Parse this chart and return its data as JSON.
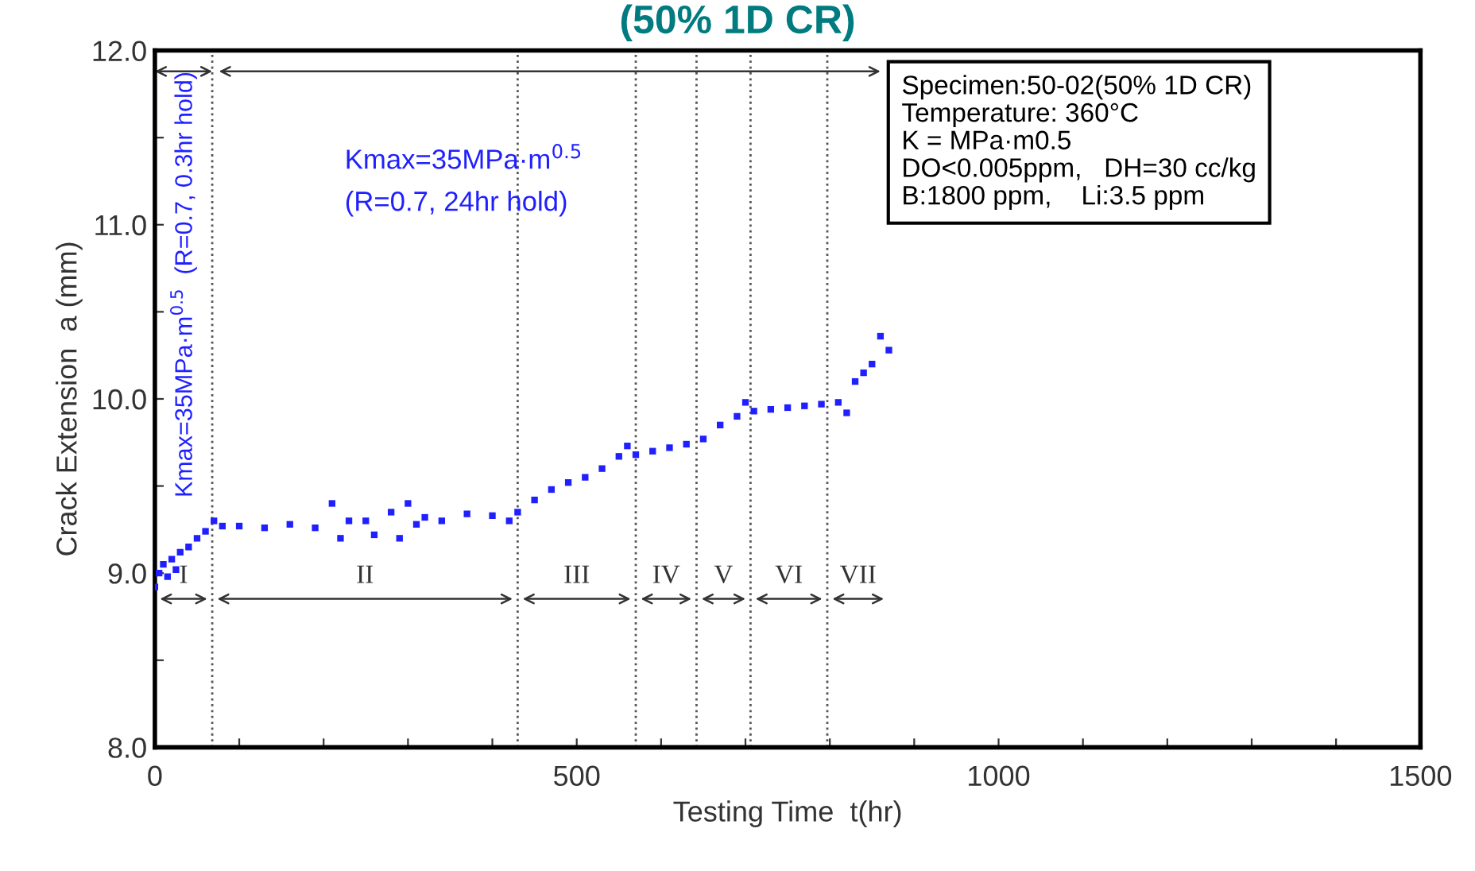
{
  "chart_data": {
    "type": "scatter",
    "title": "(50% 1D CR)",
    "xlabel": "Testing Time  t(hr)",
    "ylabel": "Crack Extension  a (mm)",
    "xlim": [
      0,
      1500
    ],
    "ylim": [
      8.0,
      12.0
    ],
    "xticks": [
      0,
      {
        "value": 100,
        "label": null
      },
      {
        "value": 200,
        "label": null
      },
      {
        "value": 300,
        "label": null
      },
      {
        "value": 400,
        "label": null
      },
      500,
      {
        "value": 600,
        "label": null
      },
      {
        "value": 700,
        "label": null
      },
      {
        "value": 800,
        "label": null
      },
      {
        "value": 900,
        "label": null
      },
      1000,
      {
        "value": 1100,
        "label": null
      },
      {
        "value": 1200,
        "label": null
      },
      {
        "value": 1300,
        "label": null
      },
      {
        "value": 1400,
        "label": null
      },
      1500
    ],
    "yticks": [
      {
        "value": 8.0,
        "label": "8.0"
      },
      {
        "value": 8.5,
        "label": null
      },
      {
        "value": 9.0,
        "label": "9.0"
      },
      {
        "value": 9.5,
        "label": null
      },
      {
        "value": 10.0,
        "label": "10.0"
      },
      {
        "value": 10.5,
        "label": null
      },
      {
        "value": 11.0,
        "label": "11.0"
      },
      {
        "value": 11.5,
        "label": null
      },
      {
        "value": 12.0,
        "label": "12.0"
      }
    ],
    "grid": false,
    "legend": false,
    "marker": "square",
    "series": [
      {
        "color": "#2020ff",
        "x": [
          0,
          5,
          10,
          15,
          20,
          25,
          30,
          40,
          50,
          60,
          70,
          80,
          100,
          130,
          160,
          190,
          210,
          220,
          230,
          250,
          260,
          280,
          290,
          300,
          310,
          320,
          340,
          370,
          400,
          420,
          430,
          450,
          470,
          490,
          510,
          530,
          550,
          560,
          570,
          590,
          610,
          630,
          650,
          670,
          690,
          700,
          710,
          730,
          750,
          770,
          790,
          810,
          820,
          830,
          840,
          850,
          860,
          870
        ],
        "values": [
          8.92,
          9.0,
          9.05,
          8.98,
          9.08,
          9.02,
          9.12,
          9.15,
          9.2,
          9.24,
          9.3,
          9.27,
          9.27,
          9.26,
          9.28,
          9.26,
          9.4,
          9.2,
          9.3,
          9.3,
          9.22,
          9.35,
          9.2,
          9.4,
          9.28,
          9.32,
          9.3,
          9.34,
          9.33,
          9.3,
          9.35,
          9.42,
          9.48,
          9.52,
          9.55,
          9.6,
          9.67,
          9.73,
          9.68,
          9.7,
          9.72,
          9.74,
          9.77,
          9.85,
          9.9,
          9.98,
          9.93,
          9.94,
          9.95,
          9.96,
          9.97,
          9.98,
          9.92,
          10.1,
          10.15,
          10.2,
          10.36,
          10.28
        ]
      }
    ],
    "ref_lines": [
      {
        "axis": "x",
        "value": 68,
        "color": "#555555",
        "line_style": "dotted"
      },
      {
        "axis": "x",
        "value": 430,
        "color": "#555555",
        "line_style": "dotted"
      },
      {
        "axis": "x",
        "value": 570,
        "color": "#555555",
        "line_style": "dotted"
      },
      {
        "axis": "x",
        "value": 642,
        "color": "#555555",
        "line_style": "dotted"
      },
      {
        "axis": "x",
        "value": 706,
        "color": "#555555",
        "line_style": "dotted"
      },
      {
        "axis": "x",
        "value": 797,
        "color": "#555555",
        "line_style": "dotted"
      }
    ],
    "annotations": [
      "Specimen:50-02(50% 1D CR)",
      "Temperature: 360°C",
      "K = MPa·m0.5",
      "DO<0.005ppm,   DH=30 cc/kg",
      "B:1800 ppm,    Li:3.5 ppm",
      "Kmax=35MPa·m$^{0.5}$",
      "(R=0.7, 24hr hold)",
      "Kmax=35MPa·m$^{0.5}$  (R=0.7, 0.3hr hold)",
      "I",
      "II",
      "III",
      "IV",
      "V",
      "VI",
      "VII"
    ]
  }
}
